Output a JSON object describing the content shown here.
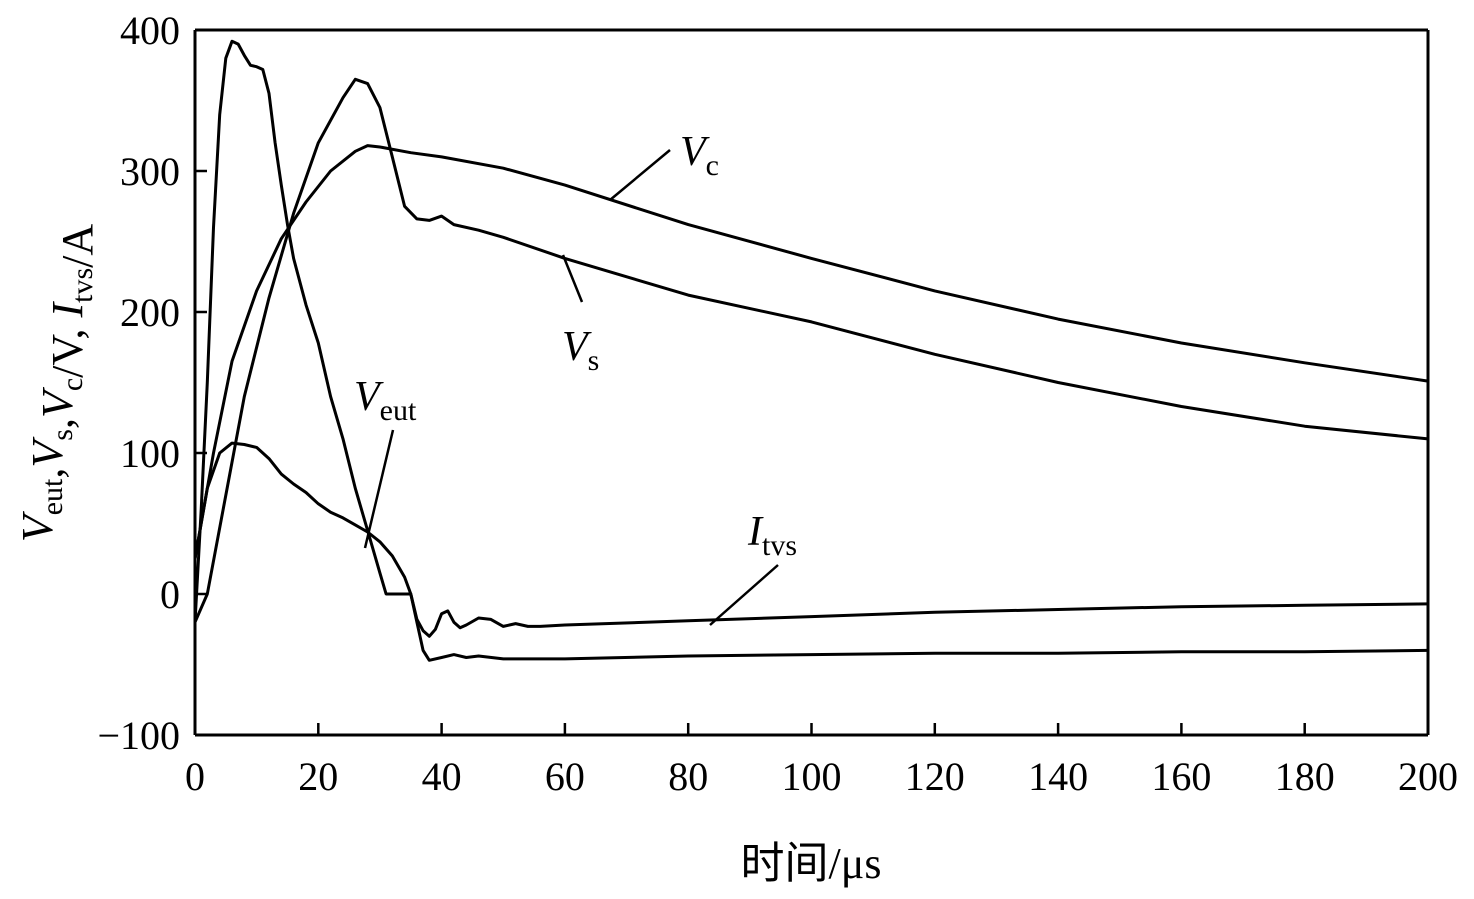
{
  "chart_data": {
    "type": "line",
    "xlabel": "时间/μs",
    "ylabel": {
      "parts": [
        {
          "t": "V",
          "sub": "eut"
        },
        {
          "t": ","
        },
        {
          "t": "V",
          "sub": "s"
        },
        {
          "t": ","
        },
        {
          "t": "V",
          "sub": "c"
        },
        {
          "t": "/V, "
        },
        {
          "t": "I",
          "sub": "tvs"
        },
        {
          "t": "/A"
        }
      ]
    },
    "xlim": [
      0,
      200
    ],
    "ylim": [
      -100,
      400
    ],
    "xticks": [
      "0",
      "20",
      "40",
      "60",
      "80",
      "100",
      "120",
      "140",
      "160",
      "180",
      "200"
    ],
    "yticks": [
      "−100",
      "0",
      "100",
      "200",
      "300",
      "400"
    ],
    "grid": false,
    "series": [
      {
        "name": "Vc",
        "label_main": "V",
        "label_sub": "c",
        "points": [
          [
            0,
            25
          ],
          [
            3,
            100
          ],
          [
            6,
            165
          ],
          [
            10,
            215
          ],
          [
            14,
            252
          ],
          [
            18,
            278
          ],
          [
            22,
            300
          ],
          [
            26,
            314
          ],
          [
            28,
            318
          ],
          [
            30,
            317
          ],
          [
            35,
            313
          ],
          [
            40,
            310
          ],
          [
            50,
            302
          ],
          [
            60,
            290
          ],
          [
            80,
            262
          ],
          [
            100,
            238
          ],
          [
            120,
            215
          ],
          [
            140,
            195
          ],
          [
            160,
            178
          ],
          [
            180,
            164
          ],
          [
            200,
            151
          ]
        ]
      },
      {
        "name": "Vs",
        "label_main": "V",
        "label_sub": "s",
        "points": [
          [
            0,
            -20
          ],
          [
            2,
            0
          ],
          [
            5,
            70
          ],
          [
            8,
            140
          ],
          [
            12,
            210
          ],
          [
            16,
            270
          ],
          [
            20,
            320
          ],
          [
            24,
            352
          ],
          [
            26,
            365
          ],
          [
            28,
            362
          ],
          [
            30,
            345
          ],
          [
            32,
            310
          ],
          [
            34,
            275
          ],
          [
            36,
            266
          ],
          [
            38,
            265
          ],
          [
            40,
            268
          ],
          [
            42,
            262
          ],
          [
            46,
            258
          ],
          [
            50,
            253
          ],
          [
            60,
            238
          ],
          [
            80,
            212
          ],
          [
            100,
            193
          ],
          [
            120,
            170
          ],
          [
            140,
            150
          ],
          [
            160,
            133
          ],
          [
            180,
            119
          ],
          [
            200,
            110
          ]
        ]
      },
      {
        "name": "Veut",
        "label_main": "V",
        "label_sub": "eut",
        "points": [
          [
            0,
            25
          ],
          [
            2,
            75
          ],
          [
            4,
            100
          ],
          [
            6,
            107
          ],
          [
            8,
            106
          ],
          [
            10,
            104
          ],
          [
            12,
            96
          ],
          [
            14,
            85
          ],
          [
            16,
            78
          ],
          [
            18,
            72
          ],
          [
            20,
            64
          ],
          [
            22,
            58
          ],
          [
            24,
            54
          ],
          [
            26,
            49
          ],
          [
            28,
            44
          ],
          [
            30,
            37
          ],
          [
            32,
            27
          ],
          [
            34,
            12
          ],
          [
            35,
            0
          ],
          [
            36,
            -18
          ],
          [
            37,
            -26
          ],
          [
            38,
            -30
          ],
          [
            39,
            -25
          ],
          [
            40,
            -14
          ],
          [
            41,
            -12
          ],
          [
            42,
            -20
          ],
          [
            43,
            -24
          ],
          [
            44,
            -22
          ],
          [
            46,
            -17
          ],
          [
            48,
            -18
          ],
          [
            50,
            -23
          ],
          [
            52,
            -21
          ],
          [
            54,
            -23
          ],
          [
            56,
            -23
          ],
          [
            60,
            -22
          ],
          [
            80,
            -19
          ],
          [
            100,
            -16
          ],
          [
            120,
            -13
          ],
          [
            140,
            -11
          ],
          [
            160,
            -9
          ],
          [
            180,
            -8
          ],
          [
            200,
            -7
          ]
        ]
      },
      {
        "name": "Itvs",
        "label_main": "I",
        "label_sub": "tvs",
        "points": [
          [
            0,
            -20
          ],
          [
            1,
            60
          ],
          [
            2,
            150
          ],
          [
            3,
            260
          ],
          [
            4,
            340
          ],
          [
            5,
            380
          ],
          [
            6,
            392
          ],
          [
            7,
            390
          ],
          [
            8,
            382
          ],
          [
            9,
            375
          ],
          [
            10,
            374
          ],
          [
            11,
            372
          ],
          [
            12,
            355
          ],
          [
            13,
            320
          ],
          [
            14,
            290
          ],
          [
            15,
            262
          ],
          [
            16,
            238
          ],
          [
            18,
            205
          ],
          [
            20,
            178
          ],
          [
            22,
            140
          ],
          [
            24,
            110
          ],
          [
            26,
            75
          ],
          [
            28,
            45
          ],
          [
            30,
            15
          ],
          [
            31,
            0
          ],
          [
            33,
            0
          ],
          [
            35,
            0
          ],
          [
            36,
            -20
          ],
          [
            37,
            -40
          ],
          [
            38,
            -47
          ],
          [
            40,
            -45
          ],
          [
            42,
            -43
          ],
          [
            44,
            -45
          ],
          [
            46,
            -44
          ],
          [
            50,
            -46
          ],
          [
            60,
            -46
          ],
          [
            80,
            -44
          ],
          [
            100,
            -43
          ],
          [
            120,
            -42
          ],
          [
            140,
            -42
          ],
          [
            160,
            -41
          ],
          [
            180,
            -41
          ],
          [
            200,
            -40
          ]
        ]
      }
    ]
  }
}
